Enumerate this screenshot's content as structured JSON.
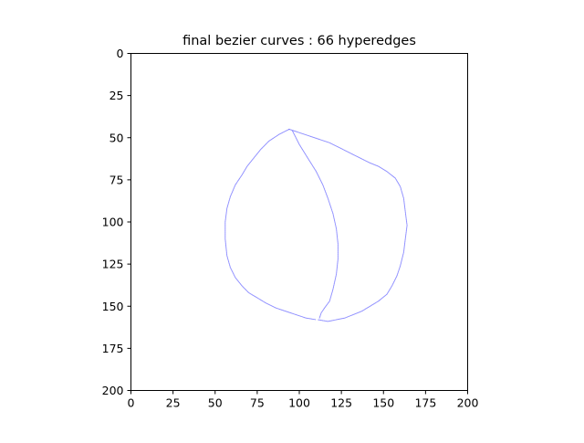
{
  "chart_data": {
    "type": "line",
    "title": "final bezier curves : 66 hyperedges",
    "xlabel": "",
    "ylabel": "",
    "xlim": [
      0,
      200
    ],
    "ylim": [
      200,
      0
    ],
    "y_inverted": true,
    "xticks": [
      0,
      25,
      50,
      75,
      100,
      125,
      150,
      175,
      200
    ],
    "yticks": [
      0,
      25,
      50,
      75,
      100,
      125,
      150,
      175,
      200
    ],
    "xtick_labels": [
      "0",
      "25",
      "50",
      "75",
      "100",
      "125",
      "150",
      "175",
      "200"
    ],
    "ytick_labels": [
      "0",
      "25",
      "50",
      "75",
      "100",
      "125",
      "150",
      "175",
      "200"
    ],
    "grid": false,
    "legend": "none",
    "series_color": "#3333ff",
    "series": [
      {
        "x": [
          94,
          88,
          82,
          77,
          73,
          69,
          66,
          62,
          59,
          57,
          56,
          56,
          57,
          59,
          62,
          66,
          70,
          75,
          80,
          86,
          92,
          98,
          104,
          110
        ],
        "y": [
          45,
          48,
          52,
          57,
          62,
          67,
          72,
          78,
          85,
          92,
          100,
          110,
          120,
          127,
          133,
          138,
          142,
          145,
          148,
          151,
          153,
          155,
          157,
          158
        ]
      },
      {
        "x": [
          96,
          100,
          105,
          110,
          114,
          117,
          120,
          122,
          123,
          123,
          122,
          120,
          118,
          115,
          113,
          112
        ],
        "y": [
          46,
          54,
          62,
          70,
          78,
          86,
          95,
          104,
          113,
          122,
          131,
          140,
          147,
          151,
          154,
          157
        ]
      },
      {
        "x": [
          94,
          100,
          106,
          112,
          118,
          124,
          130,
          136,
          142,
          147,
          152,
          157,
          160,
          162,
          163,
          164,
          163,
          162,
          160,
          158,
          155,
          152,
          147,
          142,
          137,
          132,
          127,
          122,
          117,
          111
        ],
        "y": [
          45,
          47,
          49,
          51,
          53,
          56,
          59,
          62,
          65,
          67,
          70,
          74,
          79,
          86,
          94,
          102,
          110,
          118,
          126,
          132,
          138,
          143,
          147,
          150,
          153,
          155,
          157,
          158,
          159,
          158
        ]
      }
    ]
  }
}
